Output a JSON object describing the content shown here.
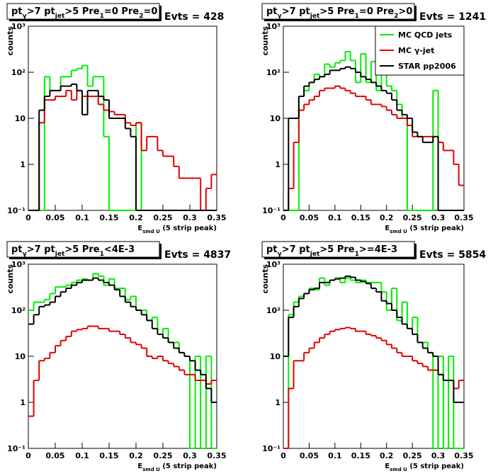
{
  "chart_data": [
    {
      "type": "histogram",
      "title": [
        {
          "text": "pt",
          "sub": "γ"
        },
        {
          "text": ">7  pt",
          "sub": "jet"
        },
        {
          "text": ">5 Pre",
          "sub": "1"
        },
        {
          "text": "=0 Pre",
          "sub": "2"
        },
        {
          "text": "=0"
        }
      ],
      "annotation": "Evts = 428",
      "ylabel": "counts",
      "xlabel": [
        {
          "text": "E",
          "sub": "smd U"
        },
        {
          "text": "  (5 strip peak)"
        }
      ],
      "log_y": true,
      "legend": false,
      "xlim": [
        0,
        0.35
      ],
      "xticks": [
        0,
        0.05,
        0.1,
        0.15,
        0.2,
        0.25,
        0.3,
        0.35
      ],
      "ylim": [
        0.1,
        1000
      ],
      "yticks": [
        {
          "value": 0.1,
          "label": "10⁻¹"
        },
        1,
        10,
        {
          "value": 100,
          "label": "10²"
        },
        {
          "value": 1000,
          "label": "10³"
        }
      ],
      "bins": [
        0,
        0.01,
        0.02,
        0.03,
        0.04,
        0.05,
        0.06,
        0.07,
        0.08,
        0.09,
        0.1,
        0.11,
        0.12,
        0.13,
        0.14,
        0.15,
        0.16,
        0.17,
        0.18,
        0.19,
        0.2,
        0.21,
        0.22,
        0.23,
        0.24,
        0.25,
        0.26,
        0.27,
        0.28,
        0.29,
        0.3,
        0.31,
        0.32,
        0.33,
        0.34,
        0.35
      ],
      "series": [
        {
          "color": "#00ee00",
          "values": [
            0,
            0,
            0,
            80,
            40,
            40,
            80,
            80,
            110,
            120,
            140,
            50,
            80,
            80,
            4,
            0,
            0,
            0,
            0,
            0,
            8,
            0,
            0,
            0,
            0,
            0,
            0,
            0,
            0,
            0,
            0,
            0,
            0,
            0,
            0
          ]
        },
        {
          "color": "#e00000",
          "values": [
            0,
            0,
            8,
            25,
            25,
            30,
            30,
            40,
            25,
            40,
            30,
            30,
            30,
            20,
            15,
            14,
            12,
            12,
            8,
            7,
            8,
            2,
            4,
            4,
            2,
            1.5,
            1.5,
            0.9,
            0.5,
            0.5,
            0.5,
            0.5,
            0,
            0.3,
            0.6
          ]
        },
        {
          "color": "#000000",
          "values": [
            0,
            0,
            15,
            30,
            40,
            40,
            50,
            50,
            55,
            40,
            12,
            40,
            40,
            30,
            25,
            10,
            10,
            10,
            6,
            4,
            0,
            0,
            0,
            0,
            0,
            0,
            0,
            0,
            0,
            0,
            0,
            0,
            0,
            0,
            0
          ]
        }
      ]
    },
    {
      "type": "histogram",
      "title": [
        {
          "text": "pt",
          "sub": "γ"
        },
        {
          "text": ">7  pt",
          "sub": "jet"
        },
        {
          "text": ">5 Pre",
          "sub": "1"
        },
        {
          "text": "=0 Pre",
          "sub": "2"
        },
        {
          "text": ">0"
        }
      ],
      "annotation": "Evts = 1241",
      "ylabel": "counts",
      "xlabel": [
        {
          "text": "E",
          "sub": "smd U"
        },
        {
          "text": "  (5 strip peak)"
        }
      ],
      "log_y": true,
      "legend": true,
      "xlim": [
        0,
        0.35
      ],
      "xticks": [
        0,
        0.05,
        0.1,
        0.15,
        0.2,
        0.25,
        0.3,
        0.35
      ],
      "ylim": [
        0.1,
        1000
      ],
      "yticks": [
        {
          "value": 0.1,
          "label": "10⁻¹"
        },
        1,
        10,
        {
          "value": 100,
          "label": "10²"
        },
        {
          "value": 1000,
          "label": "10³"
        }
      ],
      "bins": [
        0,
        0.01,
        0.02,
        0.03,
        0.04,
        0.05,
        0.06,
        0.07,
        0.08,
        0.09,
        0.1,
        0.11,
        0.12,
        0.13,
        0.14,
        0.15,
        0.16,
        0.17,
        0.18,
        0.19,
        0.2,
        0.21,
        0.22,
        0.23,
        0.24,
        0.25,
        0.26,
        0.27,
        0.28,
        0.29,
        0.3,
        0.31,
        0.32,
        0.33,
        0.34,
        0.35
      ],
      "series": [
        {
          "name": "MC QCD jets",
          "color": "#00ee00",
          "values": [
            0,
            0,
            0,
            30,
            40,
            60,
            90,
            80,
            150,
            130,
            160,
            180,
            280,
            180,
            60,
            250,
            60,
            170,
            40,
            100,
            50,
            40,
            20,
            10,
            0,
            0,
            0,
            0,
            0,
            40,
            0,
            0,
            0,
            0,
            0
          ]
        },
        {
          "name": "MC γ-jet",
          "color": "#e00000",
          "values": [
            0,
            0.3,
            3,
            15,
            20,
            25,
            30,
            40,
            45,
            45,
            50,
            45,
            40,
            35,
            30,
            30,
            25,
            20,
            20,
            18,
            15,
            12,
            10,
            10,
            7,
            4,
            4,
            4,
            4,
            4,
            3,
            2,
            2,
            1,
            0.35
          ]
        },
        {
          "name": "STAR pp2006",
          "color": "#000000",
          "values": [
            0,
            10,
            10,
            30,
            50,
            60,
            70,
            80,
            90,
            110,
            110,
            120,
            130,
            120,
            100,
            80,
            70,
            60,
            50,
            40,
            35,
            25,
            15,
            12,
            10,
            5,
            4,
            3,
            3,
            4,
            0,
            0,
            0,
            0,
            0
          ]
        }
      ]
    },
    {
      "type": "histogram",
      "title": [
        {
          "text": "pt",
          "sub": "γ"
        },
        {
          "text": ">7  pt",
          "sub": "jet"
        },
        {
          "text": ">5 Pre",
          "sub": "1"
        },
        {
          "text": "<4E-3"
        }
      ],
      "annotation": "Evts = 4837",
      "ylabel": "counts",
      "xlabel": [
        {
          "text": "E",
          "sub": "smd U"
        },
        {
          "text": "  (5 strip peak)"
        }
      ],
      "log_y": true,
      "legend": false,
      "xlim": [
        0,
        0.35
      ],
      "xticks": [
        0,
        0.05,
        0.1,
        0.15,
        0.2,
        0.25,
        0.3,
        0.35
      ],
      "ylim": [
        0.1,
        1000
      ],
      "yticks": [
        {
          "value": 0.1,
          "label": "10⁻¹"
        },
        1,
        10,
        {
          "value": 100,
          "label": "10²"
        },
        {
          "value": 1000,
          "label": "10³"
        }
      ],
      "bins": [
        0,
        0.01,
        0.02,
        0.03,
        0.04,
        0.05,
        0.06,
        0.07,
        0.08,
        0.09,
        0.1,
        0.11,
        0.12,
        0.13,
        0.14,
        0.15,
        0.16,
        0.17,
        0.18,
        0.19,
        0.2,
        0.21,
        0.22,
        0.23,
        0.24,
        0.25,
        0.26,
        0.27,
        0.28,
        0.29,
        0.3,
        0.31,
        0.32,
        0.33,
        0.34,
        0.35
      ],
      "series": [
        {
          "color": "#00ee00",
          "values": [
            100,
            150,
            150,
            170,
            230,
            320,
            320,
            350,
            400,
            450,
            480,
            450,
            620,
            550,
            350,
            480,
            300,
            300,
            170,
            200,
            100,
            100,
            60,
            70,
            30,
            40,
            20,
            20,
            12,
            10,
            0,
            10,
            0,
            10,
            0
          ]
        },
        {
          "color": "#e00000",
          "values": [
            0.5,
            3,
            8,
            9,
            12,
            17,
            22,
            27,
            35,
            38,
            40,
            45,
            45,
            40,
            40,
            35,
            35,
            30,
            25,
            20,
            18,
            15,
            10,
            9,
            10,
            8,
            7,
            6,
            5,
            4,
            4,
            3,
            3,
            2.5,
            3
          ]
        },
        {
          "color": "#000000",
          "values": [
            50,
            80,
            120,
            130,
            150,
            200,
            250,
            300,
            350,
            400,
            450,
            450,
            500,
            450,
            400,
            350,
            280,
            200,
            150,
            120,
            100,
            80,
            60,
            40,
            30,
            25,
            20,
            15,
            12,
            10,
            8,
            5,
            4,
            2,
            1
          ]
        }
      ]
    },
    {
      "type": "histogram",
      "title": [
        {
          "text": "pt",
          "sub": "γ"
        },
        {
          "text": ">7  pt",
          "sub": "jet"
        },
        {
          "text": ">5 Pre",
          "sub": "1"
        },
        {
          "text": ">=4E-3"
        }
      ],
      "annotation": "Evts = 5854",
      "ylabel": "counts",
      "xlabel": [
        {
          "text": "E",
          "sub": "smd U"
        },
        {
          "text": "  (5 strip peak)"
        }
      ],
      "log_y": true,
      "legend": false,
      "xlim": [
        0,
        0.35
      ],
      "xticks": [
        0,
        0.05,
        0.1,
        0.15,
        0.2,
        0.25,
        0.3,
        0.35
      ],
      "ylim": [
        0.1,
        1000
      ],
      "yticks": [
        {
          "value": 0.1,
          "label": "10⁻¹"
        },
        1,
        10,
        {
          "value": 100,
          "label": "10²"
        },
        {
          "value": 1000,
          "label": "10³"
        }
      ],
      "bins": [
        0,
        0.01,
        0.02,
        0.03,
        0.04,
        0.05,
        0.06,
        0.07,
        0.08,
        0.09,
        0.1,
        0.11,
        0.12,
        0.13,
        0.14,
        0.15,
        0.16,
        0.17,
        0.18,
        0.19,
        0.2,
        0.21,
        0.22,
        0.23,
        0.24,
        0.25,
        0.26,
        0.27,
        0.28,
        0.29,
        0.3,
        0.31,
        0.32,
        0.33,
        0.34,
        0.35
      ],
      "series": [
        {
          "color": "#00ee00",
          "values": [
            0,
            80,
            150,
            200,
            230,
            300,
            280,
            500,
            350,
            450,
            500,
            400,
            500,
            450,
            400,
            450,
            400,
            400,
            400,
            250,
            100,
            300,
            60,
            150,
            40,
            70,
            20,
            20,
            12,
            0,
            10,
            0,
            10,
            0,
            0
          ]
        },
        {
          "color": "#e00000",
          "values": [
            0,
            2,
            8,
            8,
            12,
            15,
            20,
            25,
            30,
            35,
            38,
            40,
            42,
            40,
            35,
            35,
            30,
            28,
            25,
            22,
            18,
            15,
            12,
            10,
            10,
            8,
            7,
            6,
            5,
            5,
            4,
            3,
            3,
            2,
            3
          ]
        },
        {
          "color": "#000000",
          "values": [
            10,
            70,
            120,
            180,
            230,
            280,
            300,
            400,
            400,
            450,
            480,
            500,
            550,
            520,
            450,
            420,
            380,
            300,
            250,
            160,
            140,
            100,
            70,
            50,
            40,
            30,
            20,
            15,
            12,
            10,
            4,
            3,
            3,
            1,
            1
          ]
        }
      ]
    }
  ]
}
